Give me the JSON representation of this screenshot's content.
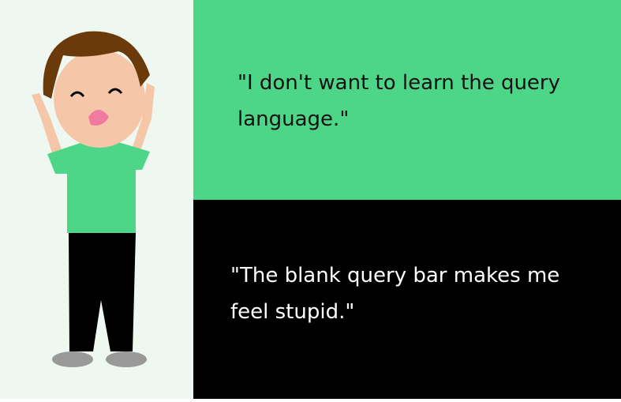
{
  "quotes": [
    {
      "text": "\"I don't want to learn the query language.\""
    },
    {
      "text": "\"The blank query bar makes me feel stupid.\""
    }
  ]
}
